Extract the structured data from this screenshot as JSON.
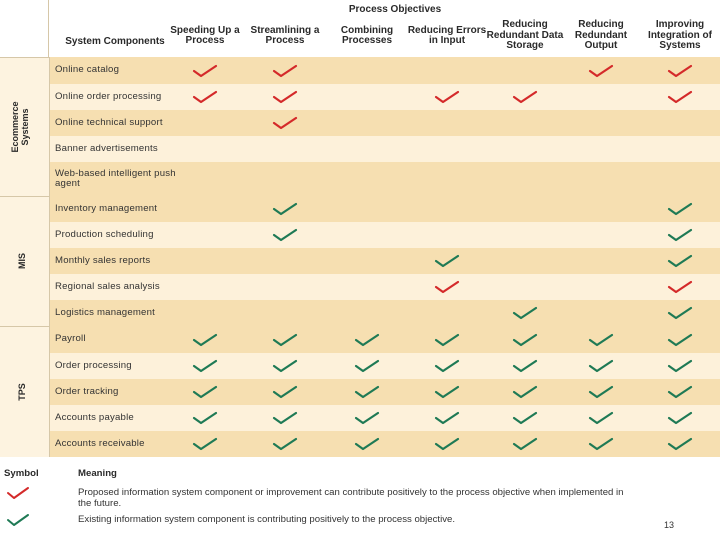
{
  "title": "Process Objectives",
  "header": {
    "components_label": "System Components",
    "columns": [
      "Speeding Up a Process",
      "Streamlining a Process",
      "Combining Processes",
      "Reducing Errors in Input",
      "Reducing Redundant Data Storage",
      "Reducing Redundant Output",
      "Improving Integration of Systems"
    ]
  },
  "groups": [
    {
      "name": "Ecommerce Systems",
      "rows": [
        {
          "label": "Online catalog",
          "marks": [
            "proposed",
            "proposed",
            "",
            "",
            "",
            "proposed",
            "proposed"
          ]
        },
        {
          "label": "Online order processing",
          "marks": [
            "proposed",
            "proposed",
            "",
            "proposed",
            "proposed",
            "",
            "proposed"
          ]
        },
        {
          "label": "Online technical support",
          "marks": [
            "",
            "proposed",
            "",
            "",
            "",
            "",
            ""
          ]
        },
        {
          "label": "Banner advertisements",
          "marks": [
            "",
            "",
            "",
            "",
            "",
            "",
            ""
          ]
        },
        {
          "label": "Web-based intelligent push agent",
          "marks": [
            "",
            "",
            "",
            "",
            "",
            "",
            ""
          ]
        }
      ]
    },
    {
      "name": "MIS",
      "rows": [
        {
          "label": "Inventory management",
          "marks": [
            "",
            "existing",
            "",
            "",
            "",
            "",
            "existing"
          ]
        },
        {
          "label": "Production scheduling",
          "marks": [
            "",
            "existing",
            "",
            "",
            "",
            "",
            "existing"
          ]
        },
        {
          "label": "Monthly sales reports",
          "marks": [
            "",
            "",
            "",
            "existing",
            "",
            "",
            "existing"
          ]
        },
        {
          "label": "Regional sales analysis",
          "marks": [
            "",
            "",
            "",
            "proposed",
            "",
            "",
            "proposed"
          ]
        },
        {
          "label": "Logistics management",
          "marks": [
            "",
            "",
            "",
            "",
            "existing",
            "",
            "existing"
          ]
        }
      ]
    },
    {
      "name": "TPS",
      "rows": [
        {
          "label": "Payroll",
          "marks": [
            "existing",
            "existing",
            "existing",
            "existing",
            "existing",
            "existing",
            "existing"
          ]
        },
        {
          "label": "Order processing",
          "marks": [
            "existing",
            "existing",
            "existing",
            "existing",
            "existing",
            "existing",
            "existing"
          ]
        },
        {
          "label": "Order tracking",
          "marks": [
            "existing",
            "existing",
            "existing",
            "existing",
            "existing",
            "existing",
            "existing"
          ]
        },
        {
          "label": "Accounts payable",
          "marks": [
            "existing",
            "existing",
            "existing",
            "existing",
            "existing",
            "existing",
            "existing"
          ]
        },
        {
          "label": "Accounts receivable",
          "marks": [
            "existing",
            "existing",
            "existing",
            "existing",
            "existing",
            "existing",
            "existing"
          ]
        }
      ]
    }
  ],
  "legend": {
    "symbol_header": "Symbol",
    "meaning_header": "Meaning",
    "proposed_text": "Proposed information system component or improvement can contribute positively to the process objective when implemented in the future.",
    "existing_text": "Existing information system component is contributing positively to the process objective."
  },
  "colors": {
    "proposed": "#d42a2a",
    "existing": "#1f7a55",
    "row_tan": "#f6dfb1",
    "row_light": "#fdf1da",
    "group_bg": "#fdf3e0",
    "rule": "#d6c7a8"
  },
  "page_number": "13"
}
